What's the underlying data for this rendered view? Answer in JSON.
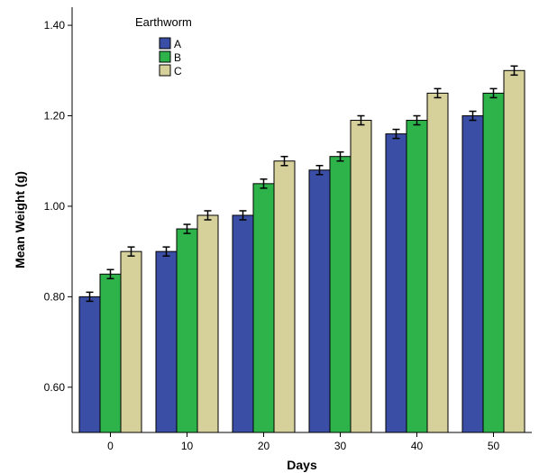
{
  "chart_data": {
    "type": "bar",
    "title": "",
    "xlabel": "Days",
    "ylabel": "Mean Weight (g)",
    "categories": [
      "0",
      "10",
      "20",
      "30",
      "40",
      "50"
    ],
    "ylim": [
      0.5,
      1.44
    ],
    "yticks": [
      "0.60",
      "0.80",
      "1.00",
      "1.20",
      "1.40"
    ],
    "ytick_values": [
      0.6,
      0.8,
      1.0,
      1.2,
      1.4
    ],
    "legend": {
      "title": "Earthworm",
      "placement": "top-left"
    },
    "grid": false,
    "error_bars": true,
    "series": [
      {
        "name": "A",
        "color": "#3a4ea5",
        "values": [
          0.8,
          0.9,
          0.98,
          1.08,
          1.16,
          1.2
        ],
        "errors": [
          0.01,
          0.01,
          0.01,
          0.01,
          0.01,
          0.01
        ]
      },
      {
        "name": "B",
        "color": "#2db34a",
        "values": [
          0.85,
          0.95,
          1.05,
          1.11,
          1.19,
          1.25
        ],
        "errors": [
          0.01,
          0.01,
          0.01,
          0.01,
          0.01,
          0.01
        ]
      },
      {
        "name": "C",
        "color": "#d6d09a",
        "values": [
          0.9,
          0.98,
          1.1,
          1.19,
          1.25,
          1.3
        ],
        "errors": [
          0.01,
          0.01,
          0.01,
          0.01,
          0.01,
          0.01
        ]
      }
    ]
  }
}
